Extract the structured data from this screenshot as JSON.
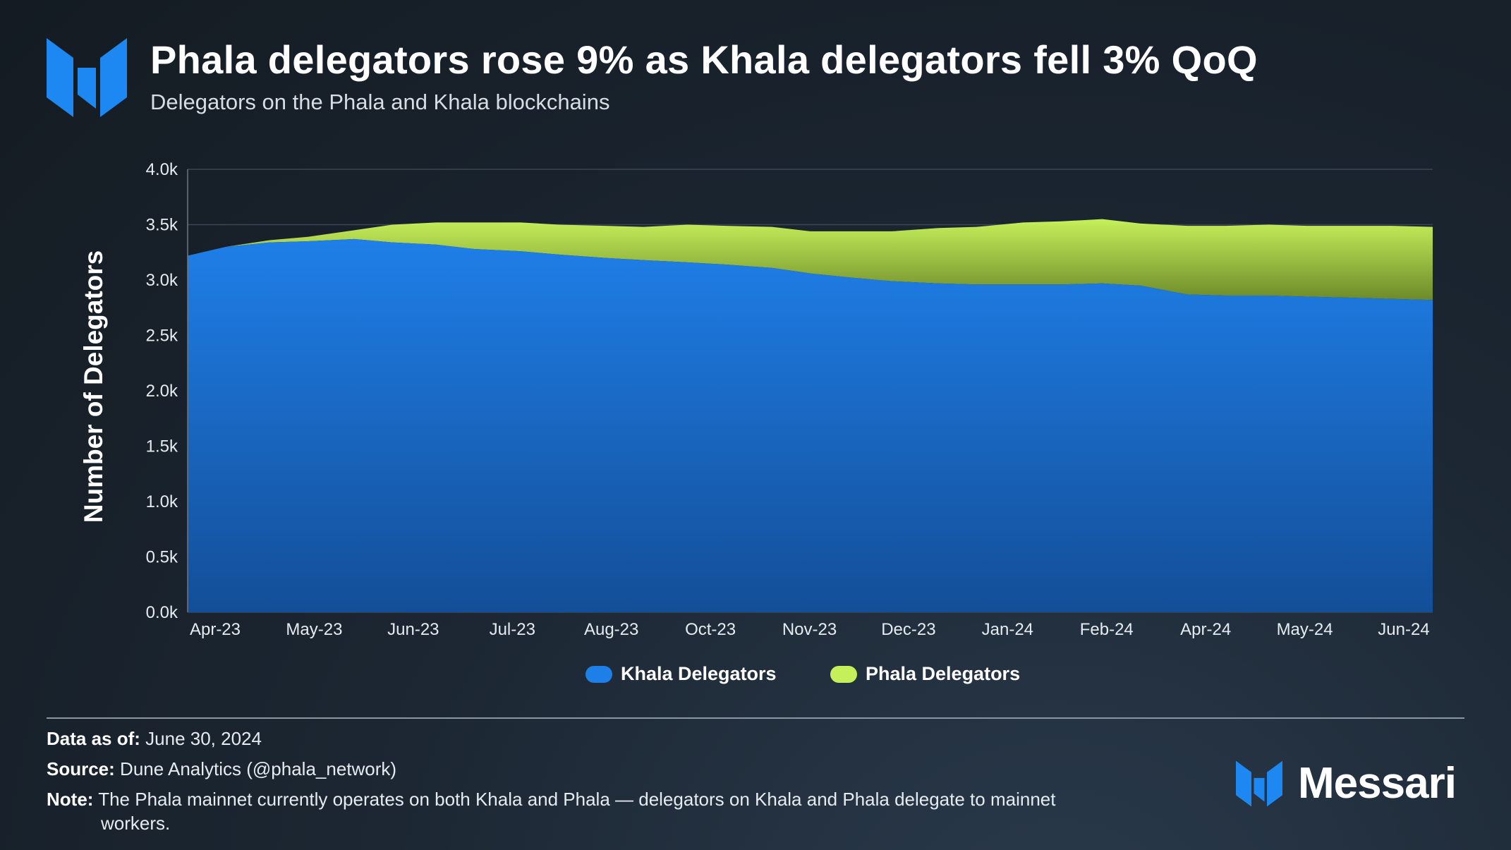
{
  "header": {
    "title": "Phala delegators rose 9% as Khala delegators fell 3% QoQ",
    "subtitle": "Delegators on the Phala and Khala blockchains"
  },
  "colors": {
    "khala": "#1f7fe8",
    "phala": "#c6f05a",
    "brand_blue": "#1e88f2"
  },
  "icons": {
    "header_logo": "messari-logo-icon",
    "brand_logo": "messari-logo-icon"
  },
  "chart_data": {
    "type": "area",
    "stacked": true,
    "ylabel": "Number of Delegators",
    "xlabel": "",
    "ylim": [
      0,
      4000
    ],
    "yticks": [
      "0.0k",
      "0.5k",
      "1.0k",
      "1.5k",
      "2.0k",
      "2.5k",
      "3.0k",
      "3.5k",
      "4.0k"
    ],
    "ytick_values": [
      0,
      500,
      1000,
      1500,
      2000,
      2500,
      3000,
      3500,
      4000
    ],
    "xticks": [
      "Apr-23",
      "May-23",
      "Jun-23",
      "Jul-23",
      "Aug-23",
      "Oct-23",
      "Nov-23",
      "Dec-23",
      "Jan-24",
      "Feb-24",
      "Apr-24",
      "May-24",
      "Jun-24"
    ],
    "x_range": [
      "2023-04-01",
      "2024-06-30"
    ],
    "grid": "horizontal",
    "legend_position": "bottom-center",
    "x": [
      "2023-04-01",
      "2023-04-15",
      "2023-05-01",
      "2023-05-15",
      "2023-06-01",
      "2023-06-15",
      "2023-07-01",
      "2023-07-15",
      "2023-08-01",
      "2023-08-15",
      "2023-09-01",
      "2023-09-15",
      "2023-10-01",
      "2023-10-15",
      "2023-11-01",
      "2023-11-15",
      "2023-12-01",
      "2023-12-15",
      "2024-01-01",
      "2024-01-15",
      "2024-02-01",
      "2024-02-15",
      "2024-03-01",
      "2024-03-15",
      "2024-04-01",
      "2024-04-15",
      "2024-05-01",
      "2024-05-15",
      "2024-06-01",
      "2024-06-15",
      "2024-06-30"
    ],
    "series": [
      {
        "name": "Khala Delegators",
        "values": [
          3220,
          3300,
          3340,
          3350,
          3370,
          3340,
          3320,
          3280,
          3260,
          3230,
          3200,
          3180,
          3160,
          3140,
          3110,
          3060,
          3020,
          2990,
          2970,
          2960,
          2960,
          2960,
          2970,
          2950,
          2870,
          2860,
          2860,
          2850,
          2840,
          2830,
          2820
        ]
      },
      {
        "name": "Phala Delegators",
        "values": [
          0,
          0,
          20,
          40,
          80,
          160,
          200,
          240,
          260,
          270,
          290,
          300,
          340,
          350,
          370,
          380,
          420,
          450,
          500,
          520,
          560,
          570,
          580,
          560,
          620,
          630,
          640,
          640,
          650,
          660,
          660
        ]
      }
    ]
  },
  "legend": {
    "khala_label": "Khala Delegators",
    "phala_label": "Phala Delegators"
  },
  "footer": {
    "data_as_of_label": "Data as of:",
    "data_as_of_value": "June 30, 2024",
    "source_label": "Source:",
    "source_value": "Dune Analytics (@phala_network)",
    "note_label": "Note:",
    "note_value": "The Phala mainnet currently operates on both Khala and Phala — delegators on Khala and Phala delegate to mainnet",
    "note_value_cont": "workers."
  },
  "brand": {
    "name": "Messari"
  }
}
